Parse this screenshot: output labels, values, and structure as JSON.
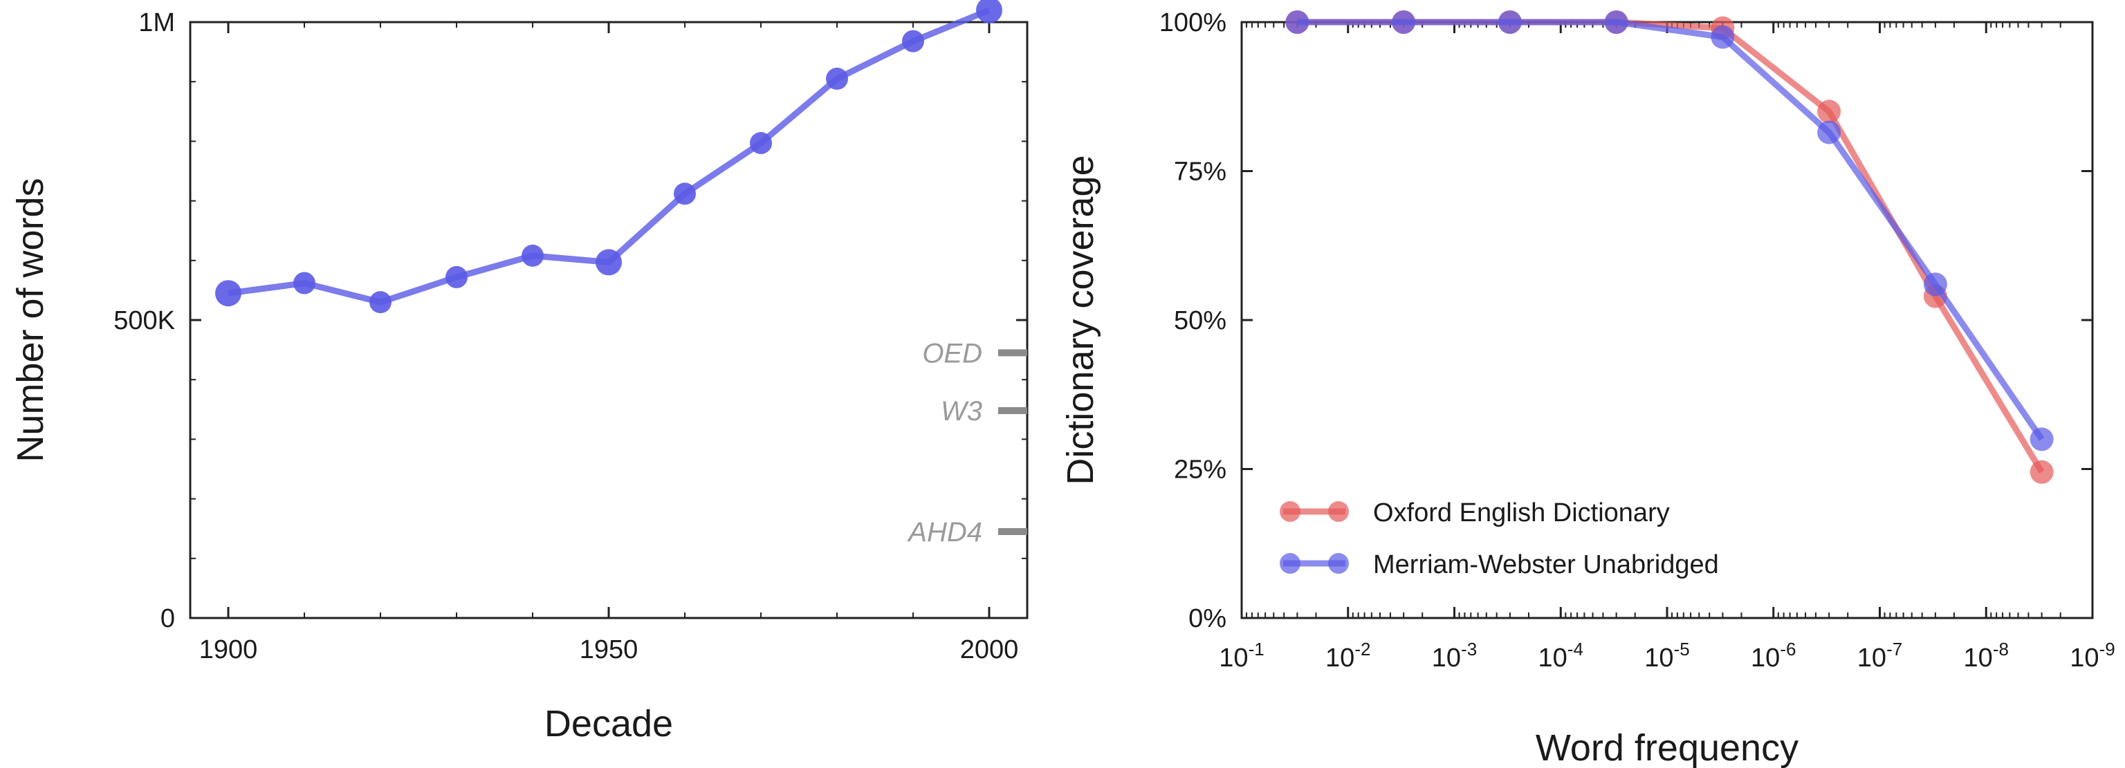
{
  "chart_data": [
    {
      "type": "line",
      "xlabel": "Decade",
      "ylabel": "Number of words",
      "xlim": [
        1895,
        2005
      ],
      "ylim": [
        0,
        1000000
      ],
      "x_ticks": [
        1900,
        1950,
        2000
      ],
      "x_tick_labels": [
        "1900",
        "1950",
        "2000"
      ],
      "y_ticks": [
        0,
        500000,
        1000000
      ],
      "y_tick_labels": [
        "0",
        "500K",
        "1M"
      ],
      "grid": false,
      "colors": {
        "series": "#5a5ae6"
      },
      "series": [
        {
          "x": [
            1900,
            1910,
            1920,
            1930,
            1940,
            1950,
            1960,
            1970,
            1980,
            1990,
            2000
          ],
          "values": [
            545000,
            562000,
            530000,
            572000,
            608000,
            597000,
            712000,
            797000,
            905000,
            968000,
            1020000
          ]
        }
      ],
      "reference_marks": [
        {
          "label": "OED",
          "value": 445000
        },
        {
          "label": "W3",
          "value": 348000
        },
        {
          "label": "AHD4",
          "value": 145000
        }
      ]
    },
    {
      "type": "line",
      "xlabel": "Word frequency",
      "ylabel": "Dictionary coverage",
      "xscale": "log",
      "x_reversed": true,
      "xlim": [
        0.1,
        1e-09
      ],
      "ylim": [
        0,
        1.0
      ],
      "x_ticks": [
        0.1,
        0.01,
        0.001,
        0.0001,
        1e-05,
        1e-06,
        1e-07,
        1e-08,
        1e-09
      ],
      "x_tick_labels": [
        {
          "base": "10",
          "exp": "-1"
        },
        {
          "base": "10",
          "exp": "-2"
        },
        {
          "base": "10",
          "exp": "-3"
        },
        {
          "base": "10",
          "exp": "-4"
        },
        {
          "base": "10",
          "exp": "-5"
        },
        {
          "base": "10",
          "exp": "-6"
        },
        {
          "base": "10",
          "exp": "-7"
        },
        {
          "base": "10",
          "exp": "-8"
        },
        {
          "base": "10",
          "exp": "-9"
        }
      ],
      "y_ticks": [
        0,
        0.25,
        0.5,
        0.75,
        1.0
      ],
      "y_tick_labels": [
        "0%",
        "25%",
        "50%",
        "75%",
        "100%"
      ],
      "grid": false,
      "legend_position": "bottom-left",
      "x": [
        0.03,
        0.003,
        0.0003,
        3e-05,
        3e-06,
        3e-07,
        3e-08,
        3e-09
      ],
      "series": [
        {
          "name": "Oxford English Dictionary",
          "color": "#e65a5a",
          "values": [
            1.0,
            1.0,
            1.0,
            1.0,
            0.99,
            0.85,
            0.54,
            0.245
          ]
        },
        {
          "name": "Merriam-Webster Unabridged",
          "color": "#5a5ae6",
          "values": [
            1.0,
            1.0,
            1.0,
            1.0,
            0.975,
            0.815,
            0.56,
            0.3
          ]
        }
      ]
    }
  ]
}
